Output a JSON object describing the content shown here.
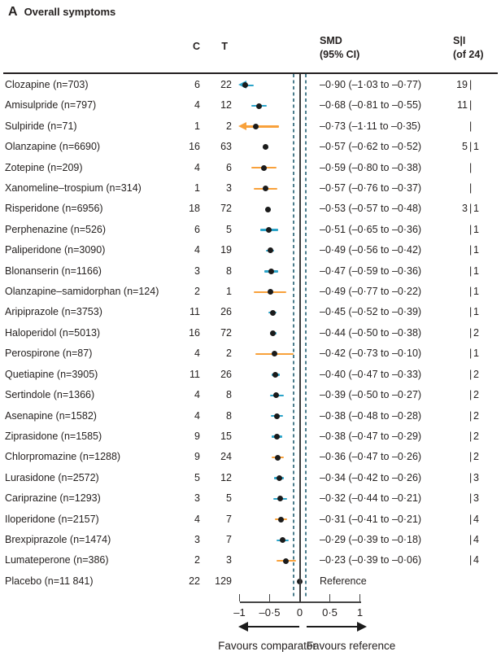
{
  "panel": {
    "letter": "A",
    "title": "Overall symptoms"
  },
  "columns": {
    "c": "C",
    "t": "T",
    "smd_line1": "SMD",
    "smd_line2": "(95% CI)",
    "si_line1": "S|I",
    "si_line2": "(of 24)"
  },
  "footer": {
    "left_arrow_label": "Favours comparator",
    "right_arrow_label": "Favours reference"
  },
  "colors": {
    "teal": "#2CA4C9",
    "orange": "#F8A13B",
    "dot": "#1B1B1B",
    "dashed_line": "#4A7C8C",
    "zero_line": "#3A3A3A"
  },
  "chart_data": {
    "type": "forest",
    "title": "Overall symptoms",
    "x_axis": {
      "min": -1,
      "max": 1,
      "tick_values": [
        -1,
        -0.5,
        0,
        0.5,
        1
      ],
      "tick_labels": [
        "–1",
        "–0·5",
        "0",
        "0·5",
        "1"
      ],
      "zero_line": 0,
      "dashed_lines": [
        -0.1,
        0.1
      ]
    },
    "rows": [
      {
        "label": "Clozapine (n=703)",
        "c": "6",
        "t": "22",
        "smd": -0.9,
        "lo": -1.03,
        "hi": -0.77,
        "ci_text": "–0·90 (–1·03 to –0·77)",
        "s": "19",
        "pipe": "|",
        "i": "",
        "color": "teal",
        "arrow_left": true,
        "point_only": false
      },
      {
        "label": "Amisulpride (n=797)",
        "c": "4",
        "t": "12",
        "smd": -0.68,
        "lo": -0.81,
        "hi": -0.55,
        "ci_text": "–0·68 (–0·81 to –0·55)",
        "s": "11",
        "pipe": "|",
        "i": "",
        "color": "teal",
        "arrow_left": false,
        "point_only": false
      },
      {
        "label": "Sulpiride (n=71)",
        "c": "1",
        "t": "2",
        "smd": -0.73,
        "lo": -1.11,
        "hi": -0.35,
        "ci_text": "–0·73 (–1·11 to –0·35)",
        "s": "",
        "pipe": "|",
        "i": "",
        "color": "orange",
        "arrow_left": true,
        "point_only": false
      },
      {
        "label": "Olanzapine (n=6690)",
        "c": "16",
        "t": "63",
        "smd": -0.57,
        "lo": -0.62,
        "hi": -0.52,
        "ci_text": "–0·57 (–0·62 to –0·52)",
        "s": "5",
        "pipe": "|",
        "i": "1",
        "color": "teal",
        "arrow_left": false,
        "point_only": false
      },
      {
        "label": "Zotepine (n=209)",
        "c": "4",
        "t": "6",
        "smd": -0.59,
        "lo": -0.8,
        "hi": -0.38,
        "ci_text": "–0·59 (–0·80 to –0·38)",
        "s": "",
        "pipe": "|",
        "i": "",
        "color": "orange",
        "arrow_left": false,
        "point_only": false
      },
      {
        "label": "Xanomeline–trospium (n=314)",
        "c": "1",
        "t": "3",
        "smd": -0.57,
        "lo": -0.76,
        "hi": -0.37,
        "ci_text": "–0·57 (–0·76 to –0·37)",
        "s": "",
        "pipe": "|",
        "i": "",
        "color": "orange",
        "arrow_left": false,
        "point_only": false
      },
      {
        "label": "Risperidone (n=6956)",
        "c": "18",
        "t": "72",
        "smd": -0.53,
        "lo": -0.57,
        "hi": -0.48,
        "ci_text": "–0·53 (–0·57 to –0·48)",
        "s": "3",
        "pipe": "|",
        "i": "1",
        "color": "teal",
        "arrow_left": false,
        "point_only": false
      },
      {
        "label": "Perphenazine (n=526)",
        "c": "6",
        "t": "5",
        "smd": -0.51,
        "lo": -0.65,
        "hi": -0.36,
        "ci_text": "–0·51 (–0·65 to –0·36)",
        "s": "",
        "pipe": "|",
        "i": "1",
        "color": "teal",
        "arrow_left": false,
        "point_only": false
      },
      {
        "label": "Paliperidone (n=3090)",
        "c": "4",
        "t": "19",
        "smd": -0.49,
        "lo": -0.56,
        "hi": -0.42,
        "ci_text": "–0·49 (–0·56 to –0·42)",
        "s": "",
        "pipe": "|",
        "i": "1",
        "color": "teal",
        "arrow_left": false,
        "point_only": false
      },
      {
        "label": "Blonanserin (n=1166)",
        "c": "3",
        "t": "8",
        "smd": -0.47,
        "lo": -0.59,
        "hi": -0.36,
        "ci_text": "–0·47 (–0·59 to –0·36)",
        "s": "",
        "pipe": "|",
        "i": "1",
        "color": "teal",
        "arrow_left": false,
        "point_only": false
      },
      {
        "label": "Olanzapine–samidorphan (n=124)",
        "c": "2",
        "t": "1",
        "smd": -0.49,
        "lo": -0.77,
        "hi": -0.22,
        "ci_text": "–0·49 (–0·77 to –0·22)",
        "s": "",
        "pipe": "|",
        "i": "1",
        "color": "orange",
        "arrow_left": false,
        "point_only": false
      },
      {
        "label": "Aripiprazole (n=3753)",
        "c": "11",
        "t": "26",
        "smd": -0.45,
        "lo": -0.52,
        "hi": -0.39,
        "ci_text": "–0·45 (–0·52 to –0·39)",
        "s": "",
        "pipe": "|",
        "i": "1",
        "color": "teal",
        "arrow_left": false,
        "point_only": false
      },
      {
        "label": "Haloperidol (n=5013)",
        "c": "16",
        "t": "72",
        "smd": -0.44,
        "lo": -0.5,
        "hi": -0.38,
        "ci_text": "–0·44 (–0·50 to –0·38)",
        "s": "",
        "pipe": "|",
        "i": "2",
        "color": "teal",
        "arrow_left": false,
        "point_only": false
      },
      {
        "label": "Perospirone (n=87)",
        "c": "4",
        "t": "2",
        "smd": -0.42,
        "lo": -0.73,
        "hi": -0.1,
        "ci_text": "–0·42 (–0·73 to –0·10)",
        "s": "",
        "pipe": "|",
        "i": "1",
        "color": "orange",
        "arrow_left": false,
        "point_only": false
      },
      {
        "label": "Quetiapine (n=3905)",
        "c": "11",
        "t": "26",
        "smd": -0.4,
        "lo": -0.47,
        "hi": -0.33,
        "ci_text": "–0·40 (–0·47 to –0·33)",
        "s": "",
        "pipe": "|",
        "i": "2",
        "color": "teal",
        "arrow_left": false,
        "point_only": false
      },
      {
        "label": "Sertindole (n=1366)",
        "c": "4",
        "t": "8",
        "smd": -0.39,
        "lo": -0.5,
        "hi": -0.27,
        "ci_text": "–0·39 (–0·50 to –0·27)",
        "s": "",
        "pipe": "|",
        "i": "2",
        "color": "teal",
        "arrow_left": false,
        "point_only": false
      },
      {
        "label": "Asenapine (n=1582)",
        "c": "4",
        "t": "8",
        "smd": -0.38,
        "lo": -0.48,
        "hi": -0.28,
        "ci_text": "–0·38 (–0·48 to –0·28)",
        "s": "",
        "pipe": "|",
        "i": "2",
        "color": "teal",
        "arrow_left": false,
        "point_only": false
      },
      {
        "label": "Ziprasidone (n=1585)",
        "c": "9",
        "t": "15",
        "smd": -0.38,
        "lo": -0.47,
        "hi": -0.29,
        "ci_text": "–0·38 (–0·47 to –0·29)",
        "s": "",
        "pipe": "|",
        "i": "2",
        "color": "teal",
        "arrow_left": false,
        "point_only": false
      },
      {
        "label": "Chlorpromazine (n=1288)",
        "c": "9",
        "t": "24",
        "smd": -0.36,
        "lo": -0.47,
        "hi": -0.26,
        "ci_text": "–0·36 (–0·47 to –0·26)",
        "s": "",
        "pipe": "|",
        "i": "2",
        "color": "orange",
        "arrow_left": false,
        "point_only": false
      },
      {
        "label": "Lurasidone (n=2572)",
        "c": "5",
        "t": "12",
        "smd": -0.34,
        "lo": -0.42,
        "hi": -0.26,
        "ci_text": "–0·34 (–0·42 to –0·26)",
        "s": "",
        "pipe": "|",
        "i": "3",
        "color": "teal",
        "arrow_left": false,
        "point_only": false
      },
      {
        "label": "Cariprazine (n=1293)",
        "c": "3",
        "t": "5",
        "smd": -0.32,
        "lo": -0.44,
        "hi": -0.21,
        "ci_text": "–0·32 (–0·44 to –0·21)",
        "s": "",
        "pipe": "|",
        "i": "3",
        "color": "teal",
        "arrow_left": false,
        "point_only": false
      },
      {
        "label": "Iloperidone (n=2157)",
        "c": "4",
        "t": "7",
        "smd": -0.31,
        "lo": -0.41,
        "hi": -0.21,
        "ci_text": "–0·31 (–0·41 to –0·21)",
        "s": "",
        "pipe": "|",
        "i": "4",
        "color": "orange",
        "arrow_left": false,
        "point_only": false
      },
      {
        "label": "Brexpiprazole (n=1474)",
        "c": "3",
        "t": "7",
        "smd": -0.29,
        "lo": -0.39,
        "hi": -0.18,
        "ci_text": "–0·29 (–0·39 to –0·18)",
        "s": "",
        "pipe": "|",
        "i": "4",
        "color": "teal",
        "arrow_left": false,
        "point_only": false
      },
      {
        "label": "Lumateperone (n=386)",
        "c": "2",
        "t": "3",
        "smd": -0.23,
        "lo": -0.39,
        "hi": -0.06,
        "ci_text": "–0·23 (–0·39 to –0·06)",
        "s": "",
        "pipe": "|",
        "i": "4",
        "color": "orange",
        "arrow_left": false,
        "point_only": false
      },
      {
        "label": "Placebo (n=11 841)",
        "c": "22",
        "t": "129",
        "smd": 0,
        "lo": 0,
        "hi": 0,
        "ci_text": "Reference",
        "s": "",
        "pipe": "",
        "i": "",
        "color": "dot",
        "arrow_left": false,
        "point_only": true
      }
    ]
  }
}
